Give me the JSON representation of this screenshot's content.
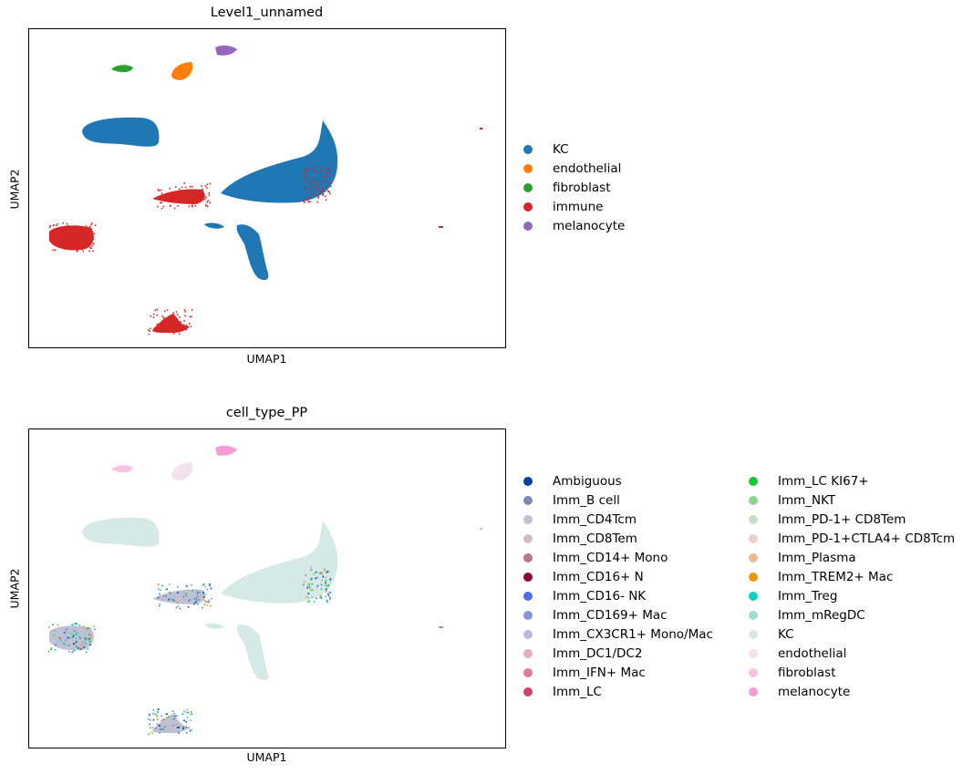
{
  "chart_data": [
    {
      "type": "scatter",
      "title": "Level1_unnamed",
      "xlabel": "UMAP1",
      "ylabel": "UMAP2",
      "ticks": "none",
      "legend_placement": "right",
      "categories": [
        {
          "name": "KC",
          "color": "#1f77b4"
        },
        {
          "name": "endothelial",
          "color": "#ff7f0e"
        },
        {
          "name": "fibroblast",
          "color": "#2ca02c"
        },
        {
          "name": "immune",
          "color": "#d62728"
        },
        {
          "name": "melanocyte",
          "color": "#9467bd"
        }
      ]
    },
    {
      "type": "scatter",
      "title": "cell_type_PP",
      "xlabel": "UMAP1",
      "ylabel": "UMAP2",
      "ticks": "none",
      "legend_placement": "right",
      "categories": [
        {
          "name": "Ambiguous",
          "color": "#023fa5"
        },
        {
          "name": "Imm_B cell",
          "color": "#7d87b9"
        },
        {
          "name": "Imm_CD4Tcm",
          "color": "#bec1d4"
        },
        {
          "name": "Imm_CD8Tem",
          "color": "#d6bcc0"
        },
        {
          "name": "Imm_CD14+ Mono",
          "color": "#bb7784"
        },
        {
          "name": "Imm_CD16+ N",
          "color": "#8e063b"
        },
        {
          "name": "Imm_CD16- NK",
          "color": "#4a6fe3"
        },
        {
          "name": "Imm_CD169+ Mac",
          "color": "#8595e1"
        },
        {
          "name": "Imm_CX3CR1+ Mono/Mac",
          "color": "#b5bbe3"
        },
        {
          "name": "Imm_DC1/DC2",
          "color": "#e6afb9"
        },
        {
          "name": "Imm_IFN+ Mac",
          "color": "#e07b91"
        },
        {
          "name": "Imm_LC",
          "color": "#d33f6a"
        },
        {
          "name": "Imm_LC KI67+",
          "color": "#11c638"
        },
        {
          "name": "Imm_NKT",
          "color": "#8dd593"
        },
        {
          "name": "Imm_PD-1+ CD8Tem",
          "color": "#c6dec7"
        },
        {
          "name": "Imm_PD-1+CTLA4+ CD8Tcm",
          "color": "#ead3c6"
        },
        {
          "name": "Imm_Plasma",
          "color": "#f0b98d"
        },
        {
          "name": "Imm_TREM2+ Mac",
          "color": "#ef9708"
        },
        {
          "name": "Imm_Treg",
          "color": "#0fcfc0"
        },
        {
          "name": "Imm_mRegDC",
          "color": "#9cded6"
        },
        {
          "name": "KC",
          "color": "#d5eae7"
        },
        {
          "name": "endothelial",
          "color": "#f3e1eb"
        },
        {
          "name": "fibroblast",
          "color": "#f6c4e1"
        },
        {
          "name": "melanocyte",
          "color": "#f79cd4"
        }
      ]
    }
  ]
}
